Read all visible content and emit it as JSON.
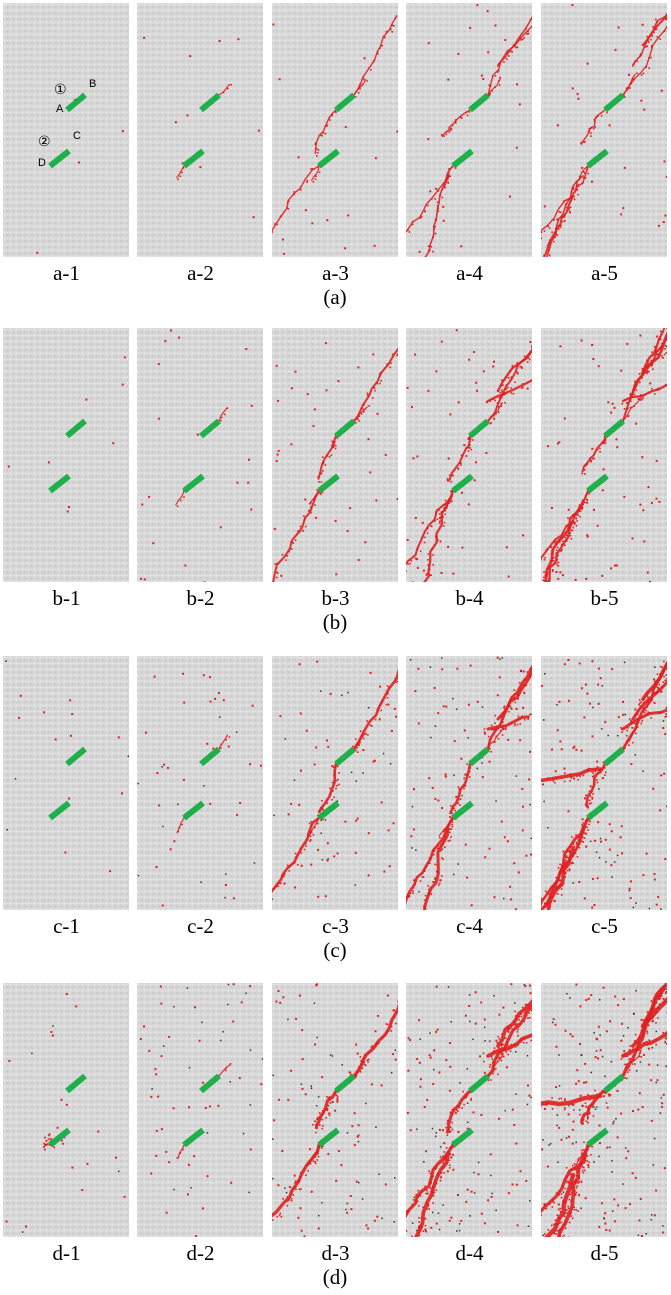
{
  "rows": [
    {
      "caption": "(a)",
      "panels": [
        {
          "label": "a-1",
          "annotations": {
            "flaw1": "①",
            "flaw2": "②",
            "A": "A",
            "B": "B",
            "C": "C",
            "D": "D"
          }
        },
        {
          "label": "a-2"
        },
        {
          "label": "a-3"
        },
        {
          "label": "a-4"
        },
        {
          "label": "a-5"
        }
      ]
    },
    {
      "caption": "(b)",
      "panels": [
        {
          "label": "b-1"
        },
        {
          "label": "b-2"
        },
        {
          "label": "b-3"
        },
        {
          "label": "b-4"
        },
        {
          "label": "b-5"
        }
      ]
    },
    {
      "caption": "(c)",
      "panels": [
        {
          "label": "c-1"
        },
        {
          "label": "c-2"
        },
        {
          "label": "c-3"
        },
        {
          "label": "c-4"
        },
        {
          "label": "c-5"
        }
      ]
    },
    {
      "caption": "(d)",
      "panels": [
        {
          "label": "d-1"
        },
        {
          "label": "d-2"
        },
        {
          "label": "d-3"
        },
        {
          "label": "d-4"
        },
        {
          "label": "d-5"
        }
      ]
    }
  ],
  "colors": {
    "specimen_background": "#d9d9d9",
    "crack": "#e02020",
    "flaw": "#1fb04c",
    "particle_dark": "#333333"
  }
}
